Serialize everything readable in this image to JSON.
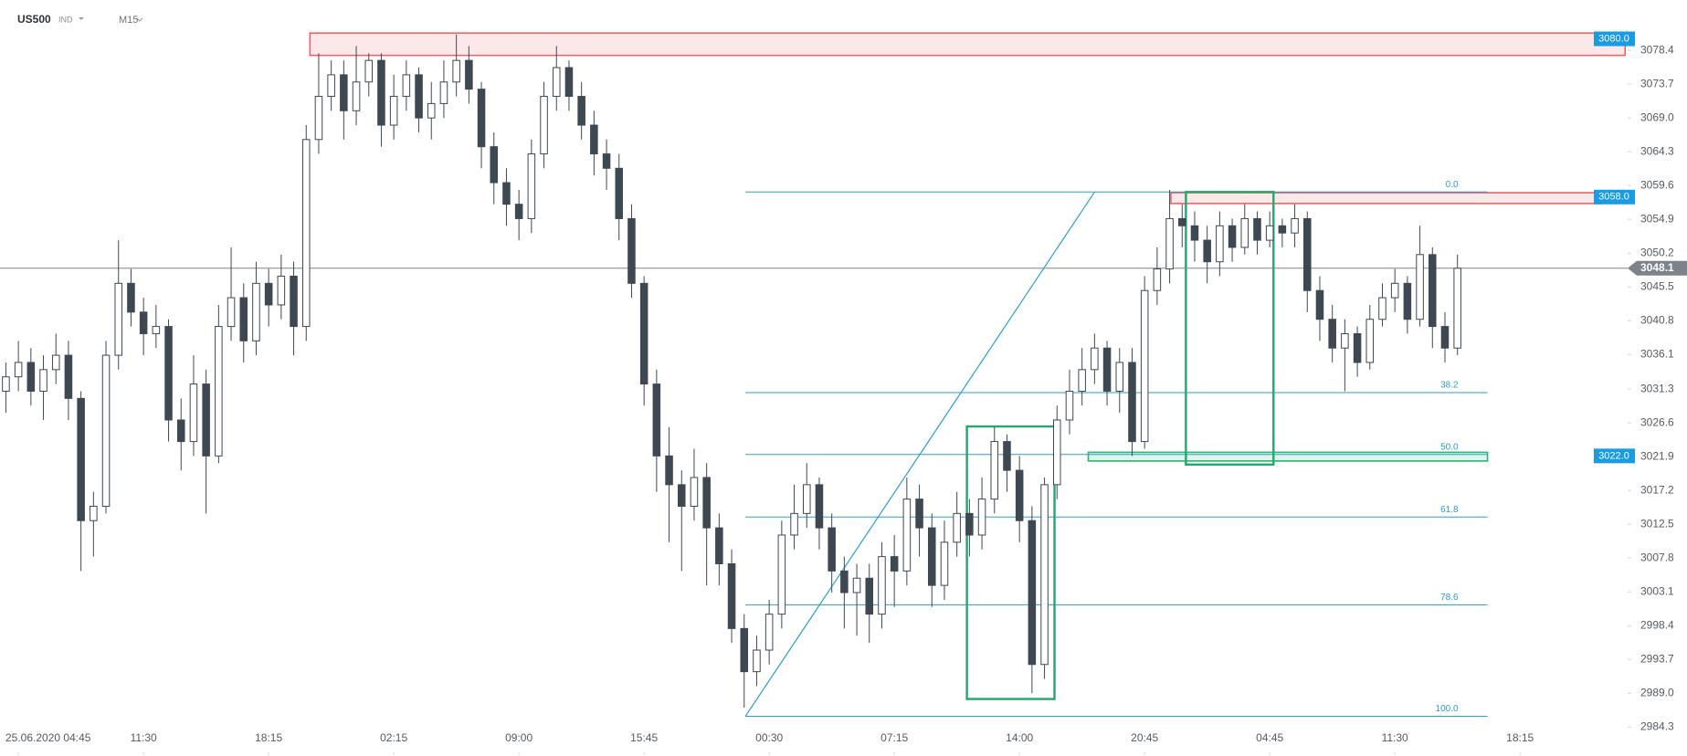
{
  "header": {
    "symbol": "US500",
    "market": "IND",
    "timeframe": "M15"
  },
  "chart_data": {
    "type": "candlestick",
    "x": [
      -1,
      0,
      1,
      2,
      3,
      4,
      5,
      6,
      7,
      8,
      9,
      10,
      11,
      12,
      13,
      14,
      15,
      16,
      17,
      18,
      19,
      20,
      21,
      22,
      23,
      24,
      25,
      26,
      27,
      28,
      29,
      30,
      31,
      32,
      33,
      34,
      35,
      36,
      37,
      38,
      39,
      40,
      41,
      42,
      43,
      44,
      45,
      46,
      47,
      48,
      49,
      50,
      51,
      52,
      53,
      54,
      55,
      56,
      57,
      58,
      59,
      60,
      61,
      62,
      63,
      64,
      65,
      66,
      67,
      68,
      69,
      70,
      71,
      72,
      73,
      74,
      75,
      76,
      77,
      78,
      79,
      80,
      81,
      82,
      83,
      84,
      85,
      86,
      87,
      88,
      89,
      90,
      91,
      92,
      93,
      94,
      95,
      96,
      97,
      98,
      99,
      100,
      101,
      102,
      103,
      104,
      105,
      106,
      107,
      108,
      109,
      110,
      111,
      112,
      113,
      114,
      115
    ],
    "open": [
      3031,
      3033,
      3035,
      3031,
      3034,
      3036,
      3030,
      3013,
      3015,
      3036,
      3046,
      3042,
      3039,
      3040,
      3027,
      3024,
      3032,
      3022,
      3040,
      3044,
      3038,
      3046,
      3043,
      3047,
      3040,
      3066,
      3072,
      3075,
      3070,
      3074,
      3077,
      3068,
      3072,
      3075,
      3069,
      3071,
      3074,
      3077,
      3073,
      3065,
      3060,
      3057,
      3055,
      3064,
      3072,
      3076,
      3072,
      3068,
      3064,
      3062,
      3055,
      3046,
      3032,
      3022,
      3018,
      3015,
      3019,
      3012,
      3007,
      2998,
      2992,
      2995,
      3000,
      3011,
      3014,
      3018,
      3012,
      3006,
      3003,
      3005,
      3000,
      3008,
      3006,
      3016,
      3012,
      3004,
      3010,
      3014,
      3011,
      3016,
      3024,
      3020,
      3013,
      2993,
      3018,
      3027,
      3031,
      3034,
      3037,
      3031,
      3035,
      3024,
      3045,
      3048,
      3055,
      3054,
      3052,
      3049,
      3054,
      3051,
      3055,
      3052,
      3054,
      3053,
      3055,
      3045,
      3041,
      3037,
      3039,
      3035,
      3041,
      3044,
      3046,
      3041,
      3050,
      3040,
      3037
    ],
    "high": [
      3035,
      3038,
      3037,
      3036,
      3039,
      3038,
      3031,
      3017,
      3038,
      3052,
      3048,
      3044,
      3043,
      3041,
      3030,
      3036,
      3034,
      3043,
      3051,
      3046,
      3049,
      3048,
      3050,
      3049,
      3068,
      3078,
      3077,
      3077,
      3079,
      3078,
      3078,
      3075,
      3077,
      3076,
      3074,
      3077,
      3080.6,
      3079,
      3074,
      3067,
      3062,
      3059,
      3066,
      3074,
      3079,
      3077,
      3074,
      3070,
      3066,
      3064,
      3057,
      3047,
      3034,
      3026,
      3020,
      3023,
      3021,
      3014,
      3009,
      3000,
      2997,
      3002,
      3013,
      3018,
      3021,
      3019,
      3014,
      3008,
      3007,
      3007,
      3010,
      3011,
      3019,
      3018,
      3014,
      3013,
      3017,
      3016,
      3019,
      3026,
      3025,
      3022,
      3015,
      3019,
      3029,
      3034,
      3037,
      3039,
      3038,
      3037,
      3037,
      3047,
      3051,
      3059,
      3057,
      3056,
      3054,
      3056,
      3055,
      3057,
      3056,
      3056,
      3055,
      3057,
      3056,
      3047,
      3043,
      3041,
      3040,
      3043,
      3046,
      3048,
      3047,
      3054,
      3051,
      3042,
      3050
    ],
    "low": [
      3028,
      3031,
      3029,
      3027,
      3032,
      3027,
      3006,
      3008,
      3014,
      3034,
      3040,
      3036,
      3037,
      3024,
      3020,
      3022,
      3014,
      3021,
      3038,
      3035,
      3036,
      3040,
      3041,
      3036,
      3038,
      3064,
      3070,
      3066,
      3068,
      3072,
      3065,
      3066,
      3070,
      3067,
      3066,
      3069,
      3072,
      3071,
      3062,
      3057,
      3054,
      3052,
      3053,
      3062,
      3070,
      3070,
      3066,
      3061,
      3059,
      3052,
      3044,
      3029,
      3017,
      3010,
      3006,
      3013,
      3004,
      3004,
      2996,
      2987,
      2990,
      2993,
      2998,
      3009,
      3012,
      3009,
      3003,
      2998,
      2997,
      2996,
      2998,
      3001,
      3004,
      3008,
      3001,
      3002,
      3008,
      3008,
      3009,
      3014,
      3017,
      3010,
      2989,
      2991,
      3016,
      3025,
      3029,
      3032,
      3029,
      3028,
      3022,
      3023,
      3043,
      3046,
      3051,
      3049,
      3046,
      3047,
      3049,
      3050,
      3050,
      3051,
      3051,
      3051,
      3042,
      3038,
      3035,
      3031,
      3033,
      3034,
      3040,
      3042,
      3039,
      3040,
      3037,
      3035,
      3036
    ],
    "close": [
      3033,
      3035,
      3031,
      3034,
      3036,
      3030,
      3013,
      3015,
      3036,
      3046,
      3042,
      3039,
      3040,
      3027,
      3024,
      3032,
      3022,
      3040,
      3044,
      3038,
      3046,
      3043,
      3047,
      3040,
      3066,
      3072,
      3075,
      3070,
      3074,
      3077,
      3068,
      3072,
      3075,
      3069,
      3071,
      3074,
      3077,
      3073,
      3065,
      3060,
      3057,
      3055,
      3064,
      3072,
      3076,
      3072,
      3068,
      3064,
      3062,
      3055,
      3046,
      3032,
      3022,
      3018,
      3015,
      3019,
      3012,
      3007,
      2998,
      2992,
      2995,
      3000,
      3011,
      3014,
      3018,
      3012,
      3006,
      3003,
      3005,
      3000,
      3008,
      3006,
      3016,
      3012,
      3004,
      3010,
      3014,
      3011,
      3016,
      3024,
      3020,
      3013,
      2993,
      3018,
      3027,
      3031,
      3034,
      3037,
      3031,
      3035,
      3024,
      3045,
      3048,
      3055,
      3054,
      3052,
      3049,
      3054,
      3051,
      3055,
      3052,
      3054,
      3053,
      3055,
      3045,
      3041,
      3037,
      3039,
      3035,
      3041,
      3044,
      3046,
      3041,
      3050,
      3040,
      3037,
      3048.1
    ],
    "up_color": "#ffffff",
    "down_color": "#3e4852",
    "xlim": [
      -1.47,
      128.6
    ],
    "ylim": [
      2980.4,
      3085.4
    ],
    "xticks": [
      {
        "value": 0,
        "label": "25.06.2020  04:45"
      },
      {
        "value": 10,
        "label": "11:30"
      },
      {
        "value": 20,
        "label": "18:15"
      },
      {
        "value": 30,
        "label": "02:15"
      },
      {
        "value": 40,
        "label": "09:00"
      },
      {
        "value": 50,
        "label": "15:45"
      },
      {
        "value": 60,
        "label": "00:30"
      },
      {
        "value": 70,
        "label": "07:15"
      },
      {
        "value": 80,
        "label": "14:00"
      },
      {
        "value": 90,
        "label": "20:45"
      },
      {
        "value": 100,
        "label": "04:45"
      },
      {
        "value": 110,
        "label": "11:30"
      },
      {
        "value": 120,
        "label": "18:15"
      }
    ],
    "yticks": [
      3078.4,
      3073.7,
      {
        "value": 3069,
        "label": "3069.0"
      },
      3064.3,
      3059.6,
      3054.9,
      3050.2,
      3045.5,
      3040.8,
      3036.1,
      3031.3,
      3026.6,
      3021.9,
      3017.2,
      3012.5,
      3007.8,
      3003.1,
      2998.4,
      2993.7,
      {
        "value": 2989,
        "label": "2989.0"
      },
      2984.3
    ],
    "last_price": 3048.1,
    "price_zones": [
      {
        "tag": {
          "value": 3080,
          "label": "3080.0"
        },
        "top": 3080.8,
        "bottom": 3077.7,
        "x": [
          23.3,
          128.4
        ],
        "color": "#e8646a"
      },
      {
        "tag": {
          "value": 3058,
          "label": "3058.0"
        },
        "top": 3058.6,
        "bottom": 3057.1,
        "x": [
          92.1,
          126.5
        ],
        "color": "#e8646a"
      },
      {
        "tag": {
          "value": 3022,
          "label": "3022.0"
        },
        "top": 3022.5,
        "bottom": 3021.3,
        "x": [
          85.5,
          117.4
        ],
        "color": "#2bb673"
      }
    ],
    "boxes": [
      {
        "x": [
          75.8,
          82.8
        ],
        "y": [
          2988.2,
          3026.1
        ],
        "color": "#22a86a"
      },
      {
        "x": [
          93.3,
          100.3
        ],
        "y": [
          3020.8,
          3058.7
        ],
        "color": "#22a86a"
      }
    ],
    "fibonacci": {
      "color": "#2a9fd0",
      "x": [
        58.1,
        117.4
      ],
      "levels": [
        {
          "ratio": {
            "value": 0,
            "label": "0.0"
          },
          "price": 3058.7
        },
        {
          "ratio": 38.2,
          "price": 3030.8
        },
        {
          "ratio": {
            "value": 50,
            "label": "50.0"
          },
          "price": 3022.2
        },
        {
          "ratio": 61.8,
          "price": 3013.5
        },
        {
          "ratio": 78.6,
          "price": 3001.3
        },
        {
          "ratio": {
            "value": 100,
            "label": "100.0"
          },
          "price": 2985.8
        }
      ],
      "trend_line": {
        "x": [
          58.1,
          86.0
        ],
        "y": [
          2985.8,
          3058.7
        ]
      }
    }
  }
}
